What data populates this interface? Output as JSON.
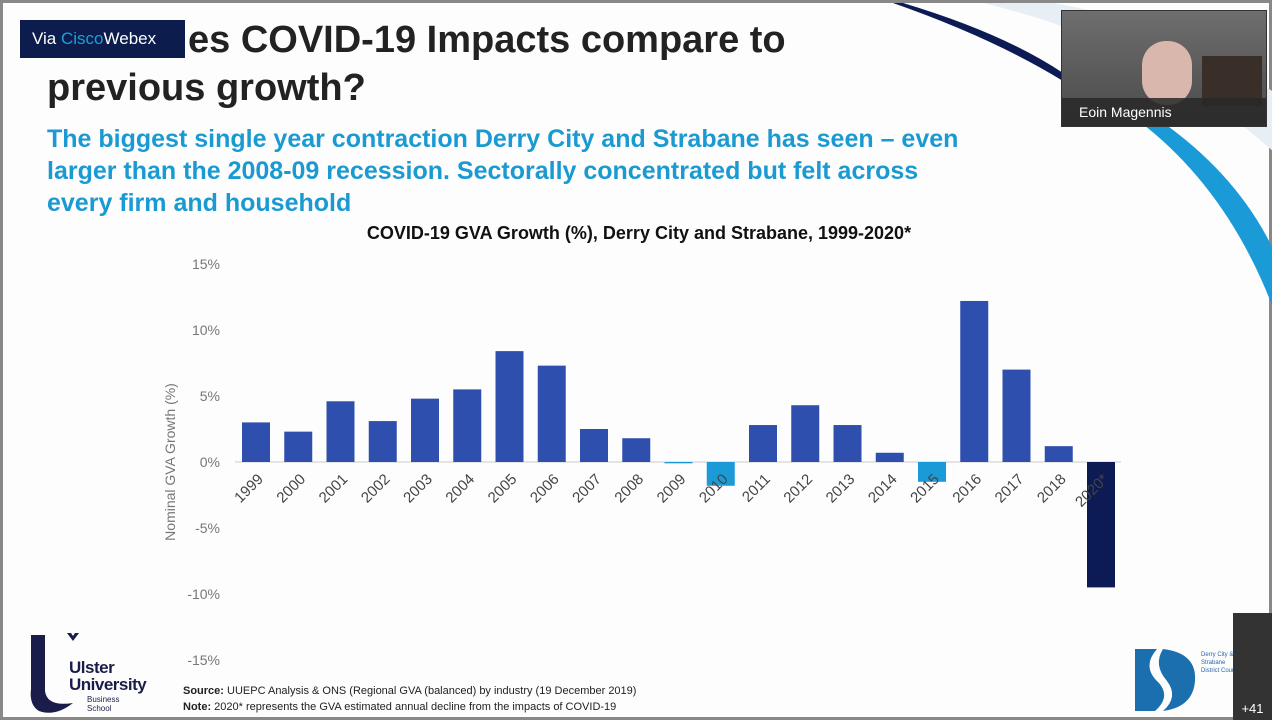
{
  "overlay": {
    "via": "Via",
    "cisco": "Cisco",
    "webex": "Webex"
  },
  "slide": {
    "title_line1": "es COVID-19 Impacts compare to",
    "title_line2": "previous growth?",
    "subtitle": "The biggest single year contraction Derry City and Strabane has seen – even larger than the 2008-09 recession. Sectorally concentrated but felt across every firm and household",
    "source_label": "Source:",
    "source_text": " UUEPC Analysis & ONS (Regional GVA (balanced) by industry (19 December 2019)",
    "note_label": "Note:",
    "note_text": " 2020* represents the GVA estimated annual decline from the impacts of COVID-19",
    "ulster_logo": "Ulster University Business School",
    "ulster_name1": "Ulster",
    "ulster_name2": "University",
    "ulster_bs1": "Business",
    "ulster_bs2": "School",
    "council_logo": "Derry City & Strabane District Council"
  },
  "participant": {
    "name": "Eoin Magennis",
    "more_count": "+41"
  },
  "colors": {
    "bar_positive": "#2e4fad",
    "bar_negative": "#1b9ad8",
    "bar_2020": "#0d1b54",
    "accent": "#1a9ad2"
  },
  "chart_data": {
    "type": "bar",
    "title": "COVID-19 GVA Growth (%), Derry City and Strabane, 1999-2020*",
    "ylabel": "Nominal GVA Growth (%)",
    "xlabel": "",
    "ylim": [
      -15,
      15
    ],
    "yticks": [
      "15%",
      "10%",
      "5%",
      "0%",
      "-5%",
      "-10%",
      "-15%"
    ],
    "ytick_values": [
      15,
      10,
      5,
      0,
      -5,
      -10,
      -15
    ],
    "grid": false,
    "categories": [
      "1999",
      "2000",
      "2001",
      "2002",
      "2003",
      "2004",
      "2005",
      "2006",
      "2007",
      "2008",
      "2009",
      "2010",
      "2011",
      "2012",
      "2013",
      "2014",
      "2015",
      "2016",
      "2017",
      "2018",
      "2020*"
    ],
    "values": [
      3.0,
      2.3,
      4.6,
      3.1,
      4.8,
      5.5,
      8.4,
      7.3,
      2.5,
      1.8,
      -0.1,
      -1.8,
      2.8,
      4.3,
      2.8,
      0.7,
      -1.5,
      12.2,
      7.0,
      1.2,
      -9.5
    ]
  }
}
